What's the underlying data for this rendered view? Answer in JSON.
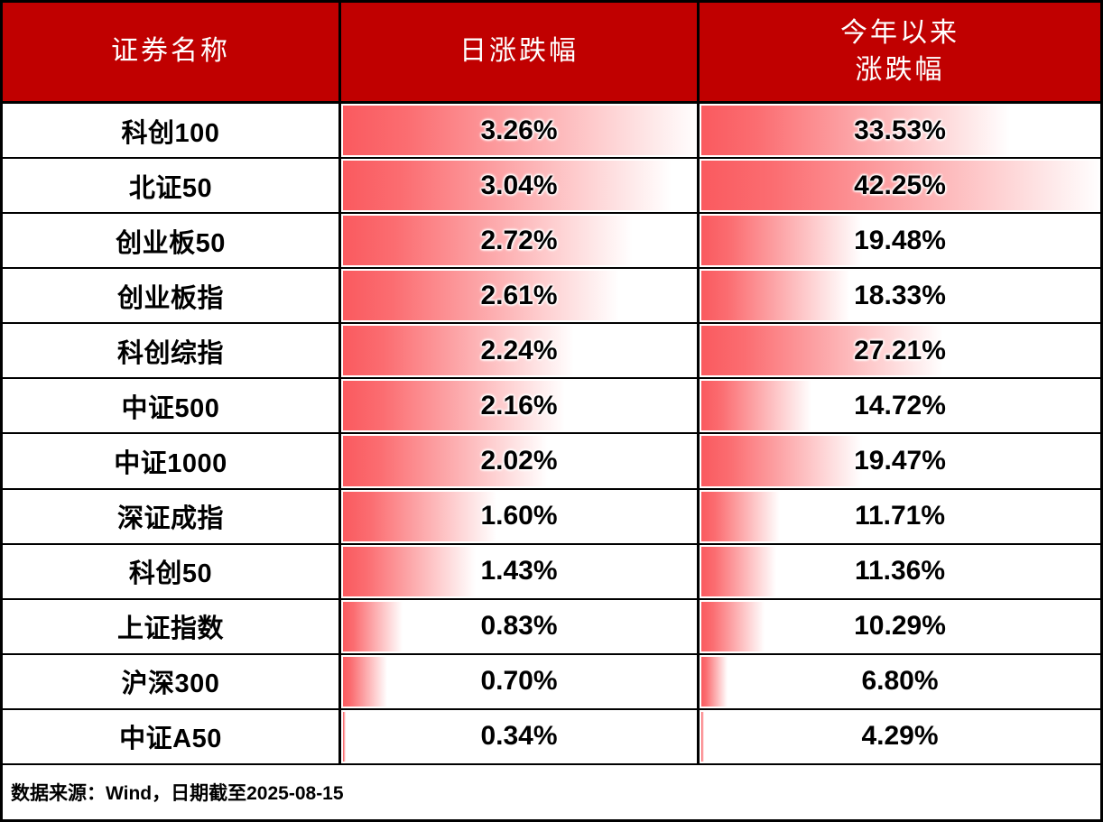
{
  "colors": {
    "header_bg": "#C00000",
    "header_text": "#FFFFFF",
    "bar_red": "#FA5A5F",
    "border": "#000000",
    "text": "#000000"
  },
  "header": {
    "col_name": "证券名称",
    "col_daily": "日涨跌幅",
    "col_ytd_line1": "今年以来",
    "col_ytd_line2": "涨跌幅"
  },
  "rows": [
    {
      "name": "科创100",
      "daily_label": "3.26%",
      "ytd_label": "33.53%",
      "daily": 3.26,
      "ytd": 33.53
    },
    {
      "name": "北证50",
      "daily_label": "3.04%",
      "ytd_label": "42.25%",
      "daily": 3.04,
      "ytd": 42.25
    },
    {
      "name": "创业板50",
      "daily_label": "2.72%",
      "ytd_label": "19.48%",
      "daily": 2.72,
      "ytd": 19.48
    },
    {
      "name": "创业板指",
      "daily_label": "2.61%",
      "ytd_label": "18.33%",
      "daily": 2.61,
      "ytd": 18.33
    },
    {
      "name": "科创综指",
      "daily_label": "2.24%",
      "ytd_label": "27.21%",
      "daily": 2.24,
      "ytd": 27.21
    },
    {
      "name": "中证500",
      "daily_label": "2.16%",
      "ytd_label": "14.72%",
      "daily": 2.16,
      "ytd": 14.72
    },
    {
      "name": "中证1000",
      "daily_label": "2.02%",
      "ytd_label": "19.47%",
      "daily": 2.02,
      "ytd": 19.47
    },
    {
      "name": "深证成指",
      "daily_label": "1.60%",
      "ytd_label": "11.71%",
      "daily": 1.6,
      "ytd": 11.71
    },
    {
      "name": "科创50",
      "daily_label": "1.43%",
      "ytd_label": "11.36%",
      "daily": 1.43,
      "ytd": 11.36
    },
    {
      "name": "上证指数",
      "daily_label": "0.83%",
      "ytd_label": "10.29%",
      "daily": 0.83,
      "ytd": 10.29
    },
    {
      "name": "沪深300",
      "daily_label": "0.70%",
      "ytd_label": "6.80%",
      "daily": 0.7,
      "ytd": 6.8
    },
    {
      "name": "中证A50",
      "daily_label": "0.34%",
      "ytd_label": "4.29%",
      "daily": 0.34,
      "ytd": 4.29
    }
  ],
  "footer": {
    "note": "数据来源：Wind，日期截至2025-08-15"
  },
  "chart_data": {
    "type": "table",
    "title": "指数涨跌幅表",
    "columns": [
      "证券名称",
      "日涨跌幅",
      "今年以来涨跌幅"
    ],
    "categories": [
      "科创100",
      "北证50",
      "创业板50",
      "创业板指",
      "科创综指",
      "中证500",
      "中证1000",
      "深证成指",
      "科创50",
      "上证指数",
      "沪深300",
      "中证A50"
    ],
    "series": [
      {
        "name": "日涨跌幅(%)",
        "values": [
          3.26,
          3.04,
          2.72,
          2.61,
          2.24,
          2.16,
          2.02,
          1.6,
          1.43,
          0.83,
          0.7,
          0.34
        ]
      },
      {
        "name": "今年以来涨跌幅(%)",
        "values": [
          33.53,
          42.25,
          19.48,
          18.33,
          27.21,
          14.72,
          19.47,
          11.71,
          11.36,
          10.29,
          6.8,
          4.29
        ]
      }
    ],
    "annotations": [
      "数据来源：Wind，日期截至2025-08-15"
    ],
    "layout_hints": {
      "databars": "gradient red-to-white bars behind values, length scaled linearly from column min to column max",
      "daily_scale": [
        0.34,
        3.26
      ],
      "ytd_scale": [
        4.29,
        42.25
      ],
      "header_style": "dark red background, white serif text",
      "grid": "black cell borders"
    }
  }
}
